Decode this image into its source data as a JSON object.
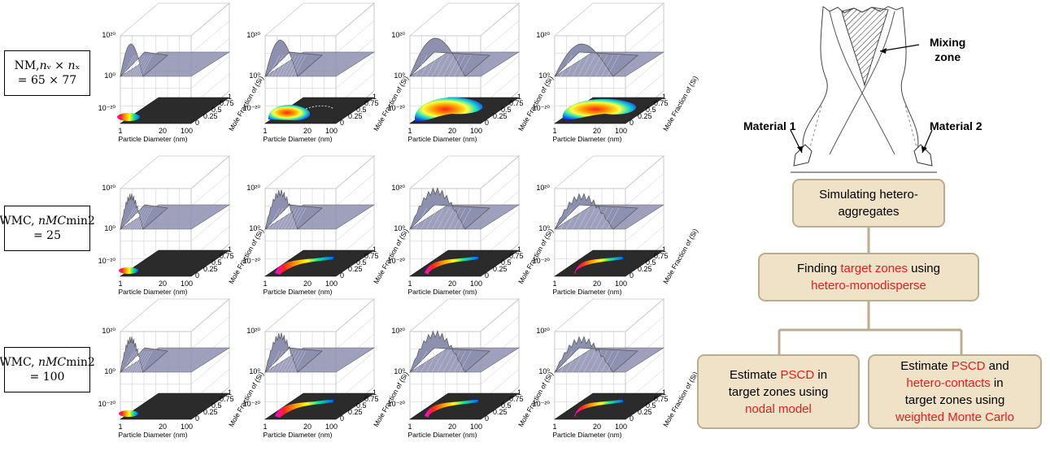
{
  "rows": [
    {
      "label_lines": [
        "NM,𝑛ᵥ × 𝑛ₓ",
        "= 65 × 77"
      ]
    },
    {
      "label_lines": [
        "WMC,  𝑛𝑀𝐶min2",
        "= 25"
      ]
    },
    {
      "label_lines": [
        "WMC,  𝑛𝑀𝐶min2",
        "= 100"
      ]
    }
  ],
  "panel": {
    "z_ticks": [
      "10²⁰",
      "10⁰",
      "10⁻²⁰"
    ],
    "x_ticks": [
      "1",
      "20",
      "100"
    ],
    "y_ticks": [
      "0",
      "0.25",
      "0.5",
      "0.75",
      "1"
    ],
    "x_label": "Particle Diameter (nm)",
    "y_label": "Mole Fraction of (Si)",
    "colors": {
      "surface": "#8e90b0",
      "floor": "#2b2b2b",
      "grid": "#c8c8c8"
    }
  },
  "mixer": {
    "mixing_zone_label": [
      "Mixing",
      "zone"
    ],
    "material1": "Material 1",
    "material2": "Material 2"
  },
  "flow": {
    "box1": [
      {
        "t": "Simulating hetero-",
        "hl": false
      },
      {
        "t": "aggregates",
        "hl": false
      }
    ],
    "box2_line1": [
      "Finding ",
      "target zones",
      " using"
    ],
    "box2_line2": "hetero-monodisperse",
    "box3_line1": [
      "Estimate ",
      "PSCD",
      " in"
    ],
    "box3_line2": "target zones using",
    "box3_line3": "nodal model",
    "box4_line1": [
      "Estimate ",
      "PSCD",
      " and"
    ],
    "box4_line2": [
      "hetero-contacts",
      " in"
    ],
    "box4_line3": "target zones using",
    "box4_line4": "weighted Monte Carlo",
    "colors": {
      "box_fill": "#f0e2c6",
      "box_border": "#b9ad8e",
      "highlight": "#e02020"
    }
  }
}
